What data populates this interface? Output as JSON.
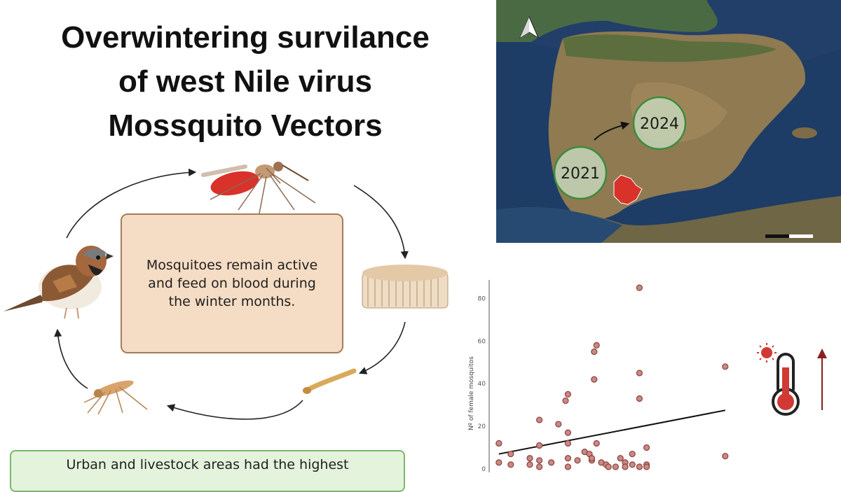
{
  "title": {
    "line1": "Overwintering survilance",
    "line2": "of west Nile virus",
    "line3": "Mossquito Vectors"
  },
  "cycle": {
    "center_text": "Mosquitoes remain active and feed on blood during the winter months.",
    "stages": [
      "bird-icon",
      "adult-mosquito-icon",
      "eggs-icon",
      "larva-icon",
      "emerging-mosquito-icon"
    ]
  },
  "bottom_box": {
    "text": "Urban and livestock areas had the highest"
  },
  "map": {
    "labels": [
      "2021",
      "2024"
    ],
    "icons": [
      "north-arrow-icon",
      "scale-bar"
    ],
    "colors": {
      "circle_border": "#3d8a3d",
      "circle_fill": "#c9dec2",
      "highlight_region": "#d8322a"
    }
  },
  "chart_data": {
    "type": "scatter",
    "title": "",
    "xlabel": "",
    "ylabel": "Nº of female mosquitos",
    "yticks": [
      "0",
      "20",
      "40",
      "60",
      "80"
    ],
    "ylim": [
      0,
      88
    ],
    "xlim": [
      0,
      100
    ],
    "points": [
      {
        "x": 2,
        "y": 12
      },
      {
        "x": 2,
        "y": 3
      },
      {
        "x": 7,
        "y": 7
      },
      {
        "x": 7,
        "y": 2
      },
      {
        "x": 15,
        "y": 5
      },
      {
        "x": 15,
        "y": 2
      },
      {
        "x": 19,
        "y": 23
      },
      {
        "x": 19,
        "y": 11
      },
      {
        "x": 19,
        "y": 4
      },
      {
        "x": 19,
        "y": 1
      },
      {
        "x": 24,
        "y": 3
      },
      {
        "x": 27,
        "y": 21
      },
      {
        "x": 30,
        "y": 32
      },
      {
        "x": 31,
        "y": 35
      },
      {
        "x": 31,
        "y": 17
      },
      {
        "x": 31,
        "y": 12
      },
      {
        "x": 31,
        "y": 5
      },
      {
        "x": 31,
        "y": 1
      },
      {
        "x": 35,
        "y": 4
      },
      {
        "x": 38,
        "y": 8
      },
      {
        "x": 40,
        "y": 7
      },
      {
        "x": 41,
        "y": 4
      },
      {
        "x": 41,
        "y": 5
      },
      {
        "x": 42,
        "y": 55
      },
      {
        "x": 42,
        "y": 42
      },
      {
        "x": 43,
        "y": 58
      },
      {
        "x": 43,
        "y": 12
      },
      {
        "x": 45,
        "y": 3
      },
      {
        "x": 47,
        "y": 2
      },
      {
        "x": 48,
        "y": 1
      },
      {
        "x": 51,
        "y": 1
      },
      {
        "x": 53,
        "y": 5
      },
      {
        "x": 55,
        "y": 3
      },
      {
        "x": 55,
        "y": 1
      },
      {
        "x": 58,
        "y": 2
      },
      {
        "x": 58,
        "y": 7
      },
      {
        "x": 61,
        "y": 85
      },
      {
        "x": 61,
        "y": 45
      },
      {
        "x": 61,
        "y": 33
      },
      {
        "x": 61,
        "y": 1
      },
      {
        "x": 64,
        "y": 10
      },
      {
        "x": 64,
        "y": 2
      },
      {
        "x": 64,
        "y": 1
      },
      {
        "x": 97,
        "y": 48
      },
      {
        "x": 97,
        "y": 6
      }
    ],
    "trendline": {
      "x": [
        2,
        97
      ],
      "y": [
        7,
        27.5
      ]
    },
    "colors": {
      "point_fill": "#c98984",
      "point_stroke": "#8b3f3a",
      "trend": "#111111"
    }
  },
  "thermometer": {
    "icons": [
      "sun-icon",
      "thermometer-icon",
      "up-arrow-icon"
    ],
    "colors": {
      "red": "#d13a34",
      "outline": "#222222",
      "arrow": "#8a1f1f"
    }
  }
}
